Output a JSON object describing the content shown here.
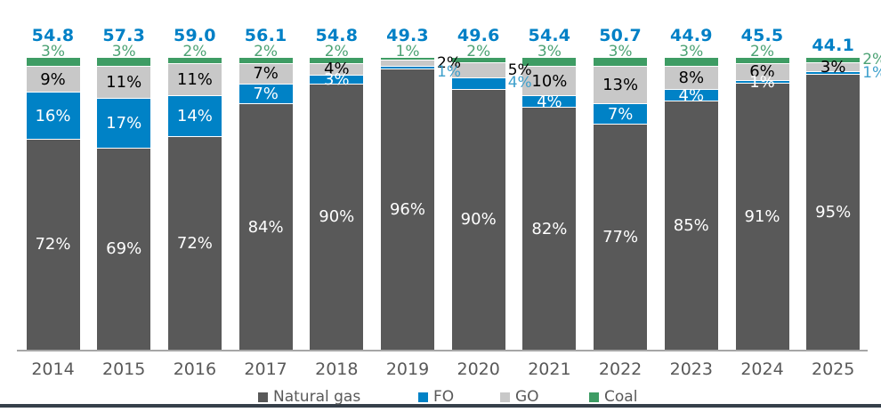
{
  "chart_data": {
    "type": "bar",
    "stacked": "percent",
    "title": "",
    "xlabel": "",
    "ylabel": "",
    "grid": false,
    "legend_position": "bottom",
    "categories": [
      "2014",
      "2015",
      "2016",
      "2017",
      "2018",
      "2019",
      "2020",
      "2021",
      "2022",
      "2023",
      "2024",
      "2025"
    ],
    "totals": [
      "54.8",
      "57.3",
      "59.0",
      "56.1",
      "54.8",
      "49.3",
      "49.6",
      "54.4",
      "50.7",
      "44.9",
      "45.5",
      "44.1"
    ],
    "total_dy": [
      0,
      0,
      0,
      0,
      0,
      0,
      0,
      0,
      0,
      0,
      0,
      11
    ],
    "stack_order_top_to_bottom": [
      "coal",
      "go",
      "fo",
      "ng"
    ],
    "series": [
      {
        "key": "ng",
        "name": "Natural gas",
        "color": "#595959",
        "label_color": "#ffffff",
        "outside_label_color": "#000000",
        "values": [
          72,
          69,
          72,
          84,
          90,
          96,
          90,
          82,
          77,
          85,
          91,
          95
        ],
        "labels": [
          "72%",
          "69%",
          "72%",
          "84%",
          "90%",
          "96%",
          "90%",
          "82%",
          "77%",
          "85%",
          "91%",
          "95%"
        ],
        "label_placement": [
          "inside",
          "inside",
          "inside",
          "inside",
          "inside",
          "inside",
          "inside",
          "inside",
          "inside",
          "inside",
          "inside",
          "inside"
        ],
        "label_dy": [
          0,
          0,
          0,
          0,
          0,
          0,
          0,
          0,
          0,
          0,
          0,
          0
        ]
      },
      {
        "key": "fo",
        "name": "FO",
        "color": "#0082C6",
        "label_color": "#ffffff",
        "outside_label_color": "#3EA0CC",
        "values": [
          16,
          17,
          14,
          7,
          3,
          1,
          4,
          4,
          7,
          4,
          1,
          1
        ],
        "labels": [
          "16%",
          "17%",
          "14%",
          "7%",
          "3%",
          "1%",
          "4%",
          "4%",
          "7%",
          "4%",
          "1%",
          "1%"
        ],
        "label_placement": [
          "inside",
          "inside",
          "inside",
          "inside",
          "inside",
          "right",
          "right",
          "inside",
          "inside",
          "inside",
          "inside",
          "right"
        ],
        "label_dy": [
          0,
          0,
          0,
          0,
          0,
          6,
          0,
          0,
          0,
          0,
          0,
          0
        ]
      },
      {
        "key": "go",
        "name": "GO",
        "color": "#C8C8C8",
        "label_color": "#000000",
        "outside_label_color": "#000000",
        "values": [
          9,
          11,
          11,
          7,
          4,
          2,
          5,
          10,
          13,
          8,
          6,
          3
        ],
        "labels": [
          "9%",
          "11%",
          "11%",
          "7%",
          "4%",
          "2%",
          "5%",
          "10%",
          "13%",
          "8%",
          "6%",
          "3%"
        ],
        "label_placement": [
          "inside",
          "inside",
          "inside",
          "inside",
          "inside",
          "right",
          "right",
          "inside",
          "inside",
          "inside",
          "inside",
          "inside"
        ],
        "label_dy": [
          0,
          0,
          0,
          0,
          0,
          0,
          0,
          0,
          0,
          0,
          0,
          0
        ]
      },
      {
        "key": "coal",
        "name": "Coal",
        "color": "#3E9C64",
        "label_color": "#4CA274",
        "outside_label_color": "#4CA274",
        "values": [
          3,
          3,
          2,
          2,
          2,
          1,
          2,
          3,
          3,
          3,
          2,
          2
        ],
        "labels": [
          "3%",
          "3%",
          "2%",
          "2%",
          "2%",
          "1%",
          "2%",
          "3%",
          "3%",
          "3%",
          "2%",
          "2%"
        ],
        "label_placement": [
          "above",
          "above",
          "above",
          "above",
          "above",
          "above",
          "above",
          "above",
          "above",
          "above",
          "above",
          "right"
        ],
        "label_dy": [
          0,
          0,
          0,
          0,
          0,
          0,
          0,
          0,
          0,
          0,
          0,
          0
        ]
      }
    ]
  },
  "colors": {
    "total_label": "#0080C6",
    "axis_line": "#A6A6A6",
    "year_label": "#595959",
    "legend_text": "#595959",
    "bottom_rule": "#36404A",
    "background": "#FFFFFF"
  },
  "legend": {
    "items": [
      {
        "label": "Natural gas",
        "color": "#595959",
        "x": 290
      },
      {
        "label": "FO",
        "color": "#0082C6",
        "x": 470
      },
      {
        "label": "GO",
        "color": "#C8C8C8",
        "x": 562
      },
      {
        "label": "Coal",
        "color": "#3E9C64",
        "x": 662
      }
    ]
  }
}
